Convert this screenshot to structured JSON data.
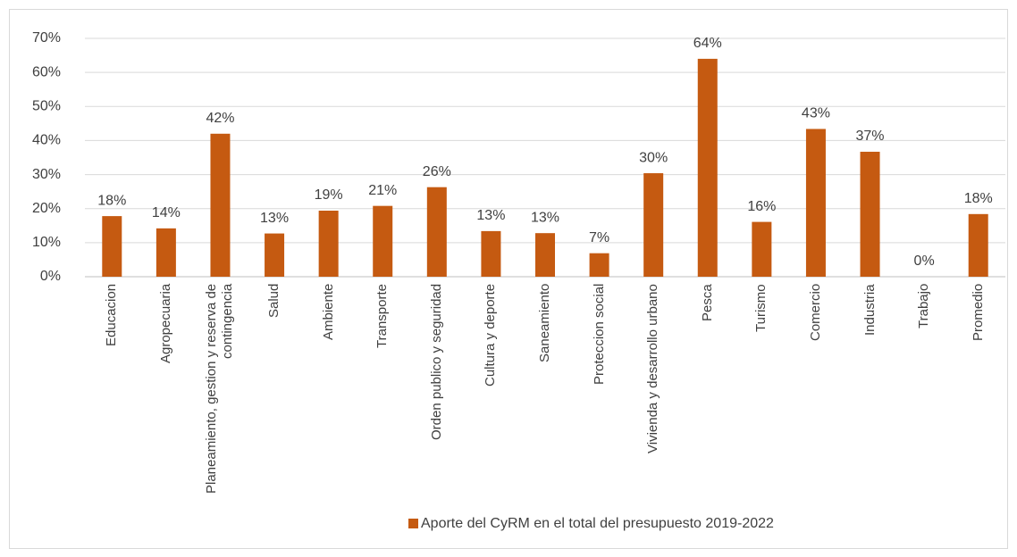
{
  "chart_data": {
    "type": "bar",
    "categories": [
      "Educacion",
      "Agropecuaria",
      "Planeamiento, gestion y reserva de contingencia",
      "Salud",
      "Ambiente",
      "Transporte",
      "Orden publico y seguridad",
      "Cultura y deporte",
      "Saneamiento",
      "Proteccion social",
      "Vivienda y desarrollo urbano",
      "Pesca",
      "Turismo",
      "Comercio",
      "Industria",
      "Trabajo",
      "Promedio"
    ],
    "series": [
      {
        "name": "Aporte del CyRM en el total del presupuesto 2019-2022",
        "color": "#c55a11",
        "values": [
          17.8,
          14.2,
          42,
          12.7,
          19.4,
          20.8,
          26.3,
          13.4,
          12.8,
          6.9,
          30.4,
          64,
          16.1,
          43.4,
          36.7,
          0,
          18.4
        ],
        "value_labels": [
          "18%",
          "14%",
          "42%",
          "13%",
          "19%",
          "21%",
          "26%",
          "13%",
          "13%",
          "7%",
          "30%",
          "64%",
          "16%",
          "43%",
          "37%",
          "0%",
          "18%"
        ]
      }
    ],
    "ylim": [
      0,
      70
    ],
    "yticks": [
      {
        "value": 0,
        "label": "0%"
      },
      {
        "value": 10,
        "label": "10%"
      },
      {
        "value": 20,
        "label": "20%"
      },
      {
        "value": 30,
        "label": "30%"
      },
      {
        "value": 40,
        "label": "40%"
      },
      {
        "value": 50,
        "label": "50%"
      },
      {
        "value": 60,
        "label": "60%"
      },
      {
        "value": 70,
        "label": "70%"
      }
    ],
    "grid": true,
    "legend": "bottom"
  }
}
